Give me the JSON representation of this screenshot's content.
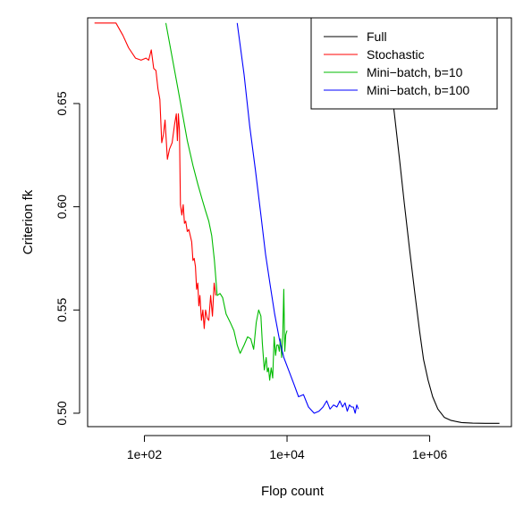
{
  "chart_data": {
    "type": "line",
    "title": "",
    "xlabel": "Flop count",
    "ylabel": "Criterion fk",
    "x_scale": "log10",
    "xlim": [
      16,
      14000000
    ],
    "ylim": [
      0.4935,
      0.6915
    ],
    "grid": false,
    "legend_placement": "top-right",
    "x_ticks": [
      {
        "value": 100,
        "label": "1e+02"
      },
      {
        "value": 10000,
        "label": "1e+04"
      },
      {
        "value": 1000000,
        "label": "1e+06"
      }
    ],
    "y_ticks": [
      {
        "value": 0.5,
        "label": "0.50"
      },
      {
        "value": 0.55,
        "label": "0.55"
      },
      {
        "value": 0.6,
        "label": "0.60"
      },
      {
        "value": 0.65,
        "label": "0.65"
      }
    ],
    "series": [
      {
        "name": "Full",
        "color": "#000000",
        "points": [
          [
            225000,
            0.688
          ],
          [
            270000,
            0.667
          ],
          [
            320000,
            0.645
          ],
          [
            380000,
            0.622
          ],
          [
            440000,
            0.602
          ],
          [
            520000,
            0.58
          ],
          [
            620000,
            0.558
          ],
          [
            720000,
            0.54
          ],
          [
            820000,
            0.526
          ],
          [
            950000,
            0.516
          ],
          [
            1100000,
            0.508
          ],
          [
            1300000,
            0.502
          ],
          [
            1600000,
            0.498
          ],
          [
            2000000,
            0.4965
          ],
          [
            2800000,
            0.4955
          ],
          [
            4000000,
            0.4952
          ],
          [
            6000000,
            0.4951
          ],
          [
            9500000,
            0.4951
          ]
        ]
      },
      {
        "name": "Stochastic",
        "color": "#ff0000",
        "points": [
          [
            20,
            0.689
          ],
          [
            30,
            0.689
          ],
          [
            40,
            0.689
          ],
          [
            50,
            0.683
          ],
          [
            60,
            0.677
          ],
          [
            75,
            0.672
          ],
          [
            90,
            0.671
          ],
          [
            105,
            0.672
          ],
          [
            115,
            0.671
          ],
          [
            125,
            0.676
          ],
          [
            135,
            0.667
          ],
          [
            145,
            0.666
          ],
          [
            155,
            0.657
          ],
          [
            165,
            0.652
          ],
          [
            175,
            0.631
          ],
          [
            185,
            0.635
          ],
          [
            195,
            0.642
          ],
          [
            210,
            0.623
          ],
          [
            225,
            0.628
          ],
          [
            245,
            0.631
          ],
          [
            265,
            0.64
          ],
          [
            280,
            0.645
          ],
          [
            290,
            0.632
          ],
          [
            300,
            0.645
          ],
          [
            310,
            0.637
          ],
          [
            320,
            0.601
          ],
          [
            335,
            0.596
          ],
          [
            350,
            0.601
          ],
          [
            365,
            0.592
          ],
          [
            380,
            0.593
          ],
          [
            400,
            0.588
          ],
          [
            420,
            0.589
          ],
          [
            440,
            0.586
          ],
          [
            460,
            0.583
          ],
          [
            480,
            0.574
          ],
          [
            500,
            0.575
          ],
          [
            520,
            0.571
          ],
          [
            540,
            0.56
          ],
          [
            560,
            0.563
          ],
          [
            580,
            0.552
          ],
          [
            600,
            0.557
          ],
          [
            630,
            0.545
          ],
          [
            660,
            0.55
          ],
          [
            690,
            0.541
          ],
          [
            720,
            0.55
          ],
          [
            760,
            0.546
          ],
          [
            800,
            0.545
          ],
          [
            850,
            0.557
          ],
          [
            900,
            0.547
          ],
          [
            950,
            0.563
          ],
          [
            1000,
            0.557
          ]
        ]
      },
      {
        "name": "Mini−batch, b=10",
        "color": "#00bb00",
        "points": [
          [
            200,
            0.689
          ],
          [
            300,
            0.656
          ],
          [
            400,
            0.632
          ],
          [
            480,
            0.62
          ],
          [
            560,
            0.611
          ],
          [
            640,
            0.604
          ],
          [
            720,
            0.598
          ],
          [
            800,
            0.593
          ],
          [
            880,
            0.586
          ],
          [
            960,
            0.574
          ],
          [
            1050,
            0.557
          ],
          [
            1150,
            0.558
          ],
          [
            1250,
            0.556
          ],
          [
            1400,
            0.548
          ],
          [
            1600,
            0.544
          ],
          [
            1800,
            0.54
          ],
          [
            2000,
            0.533
          ],
          [
            2200,
            0.529
          ],
          [
            2500,
            0.533
          ],
          [
            2800,
            0.537
          ],
          [
            3100,
            0.536
          ],
          [
            3400,
            0.531
          ],
          [
            3700,
            0.544
          ],
          [
            4000,
            0.55
          ],
          [
            4300,
            0.547
          ],
          [
            4500,
            0.534
          ],
          [
            4800,
            0.521
          ],
          [
            5100,
            0.527
          ],
          [
            5300,
            0.52
          ],
          [
            5500,
            0.522
          ],
          [
            5700,
            0.516
          ],
          [
            6000,
            0.522
          ],
          [
            6300,
            0.517
          ],
          [
            6600,
            0.537
          ],
          [
            6900,
            0.528
          ],
          [
            7200,
            0.533
          ],
          [
            7500,
            0.533
          ],
          [
            7800,
            0.53
          ],
          [
            8100,
            0.536
          ],
          [
            8400,
            0.527
          ],
          [
            8700,
            0.537
          ],
          [
            9000,
            0.56
          ],
          [
            9300,
            0.53
          ],
          [
            9600,
            0.538
          ],
          [
            10000,
            0.54
          ]
        ]
      },
      {
        "name": "Mini−batch, b=100",
        "color": "#0000ff",
        "points": [
          [
            2000,
            0.689
          ],
          [
            2500,
            0.664
          ],
          [
            3000,
            0.639
          ],
          [
            3600,
            0.618
          ],
          [
            4300,
            0.596
          ],
          [
            5000,
            0.577
          ],
          [
            5800,
            0.562
          ],
          [
            6700,
            0.548
          ],
          [
            7800,
            0.536
          ],
          [
            9000,
            0.527
          ],
          [
            10500,
            0.521
          ],
          [
            12500,
            0.514
          ],
          [
            14500,
            0.508
          ],
          [
            17000,
            0.509
          ],
          [
            20000,
            0.503
          ],
          [
            24000,
            0.5
          ],
          [
            28000,
            0.501
          ],
          [
            32000,
            0.503
          ],
          [
            36000,
            0.506
          ],
          [
            40000,
            0.502
          ],
          [
            45000,
            0.504
          ],
          [
            50000,
            0.503
          ],
          [
            55000,
            0.506
          ],
          [
            60000,
            0.503
          ],
          [
            65000,
            0.505
          ],
          [
            70000,
            0.501
          ],
          [
            75000,
            0.504
          ],
          [
            80000,
            0.503
          ],
          [
            85000,
            0.503
          ],
          [
            90000,
            0.5
          ],
          [
            95000,
            0.504
          ],
          [
            100000,
            0.502
          ]
        ]
      }
    ]
  }
}
